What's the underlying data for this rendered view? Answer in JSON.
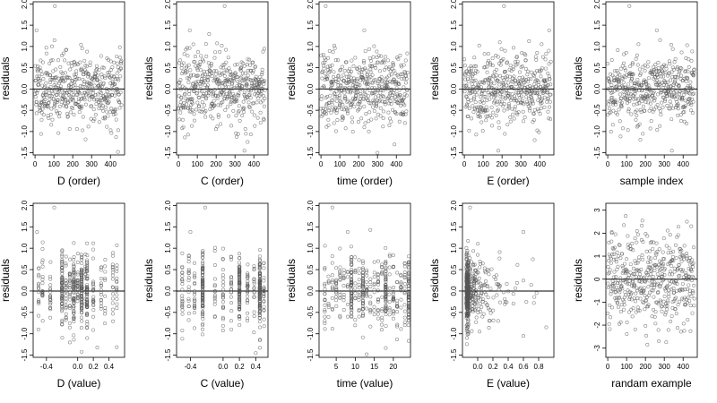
{
  "marker_color": "#555555",
  "chart_data": [
    {
      "type": "scatter",
      "xlabel": "D (order)",
      "ylabel": "residuals",
      "xlim": [
        -10,
        475
      ],
      "ylim": [
        -1.55,
        2.05
      ],
      "xticks": [
        0,
        100,
        200,
        300,
        400
      ],
      "xtick_labels": [
        "0",
        "100",
        "200",
        "300",
        "400"
      ],
      "yticks": [
        -1.5,
        -1,
        -0.5,
        0,
        0.5,
        1,
        1.5,
        2
      ],
      "ytick_labels": [
        "-1.5",
        "-1.0",
        "-0.5",
        "0.0",
        "0.5",
        "1.0",
        "1.5",
        "2.0"
      ],
      "reference_line_y": 0,
      "x_kind": "order",
      "n": 460,
      "spread": 0.42,
      "seed": 11,
      "points": [
        {
          "x": 105,
          "y": 1.95
        },
        {
          "x": 8,
          "y": 1.38
        },
        {
          "x": 440,
          "y": -1.48
        }
      ]
    },
    {
      "type": "scatter",
      "xlabel": "C (order)",
      "ylabel": "residuals",
      "xlim": [
        -10,
        475
      ],
      "ylim": [
        -1.55,
        2.05
      ],
      "xticks": [
        0,
        100,
        200,
        300,
        400
      ],
      "xtick_labels": [
        "0",
        "100",
        "200",
        "300",
        "400"
      ],
      "yticks": [
        -1.5,
        -1,
        -0.5,
        0,
        0.5,
        1,
        1.5,
        2
      ],
      "ytick_labels": [
        "-1.5",
        "-1.0",
        "-0.5",
        "0.0",
        "0.5",
        "1.0",
        "1.5",
        "2.0"
      ],
      "reference_line_y": 0,
      "x_kind": "order",
      "n": 460,
      "spread": 0.42,
      "seed": 23,
      "points": [
        {
          "x": 245,
          "y": 1.95
        },
        {
          "x": 60,
          "y": 1.38
        },
        {
          "x": 350,
          "y": -1.45
        }
      ]
    },
    {
      "type": "scatter",
      "xlabel": "time (order)",
      "ylabel": "residuals",
      "xlim": [
        -10,
        475
      ],
      "ylim": [
        -1.55,
        2.05
      ],
      "xticks": [
        0,
        100,
        200,
        300,
        400
      ],
      "xtick_labels": [
        "0",
        "100",
        "200",
        "300",
        "400"
      ],
      "yticks": [
        -1.5,
        -1,
        -0.5,
        0,
        0.5,
        1,
        1.5,
        2
      ],
      "ytick_labels": [
        "-1.5",
        "-1.0",
        "-0.5",
        "0.0",
        "0.5",
        "1.0",
        "1.5",
        "2.0"
      ],
      "reference_line_y": 0,
      "x_kind": "order",
      "n": 460,
      "spread": 0.42,
      "seed": 37,
      "points": [
        {
          "x": 25,
          "y": 1.95
        },
        {
          "x": 230,
          "y": 1.38
        },
        {
          "x": 300,
          "y": -1.5
        }
      ]
    },
    {
      "type": "scatter",
      "xlabel": "E (order)",
      "ylabel": "residuals",
      "xlim": [
        -10,
        475
      ],
      "ylim": [
        -1.55,
        2.05
      ],
      "xticks": [
        0,
        100,
        200,
        300,
        400
      ],
      "xtick_labels": [
        "0",
        "100",
        "200",
        "300",
        "400"
      ],
      "yticks": [
        -1.5,
        -1,
        -0.5,
        0,
        0.5,
        1,
        1.5,
        2
      ],
      "ytick_labels": [
        "-1.5",
        "-1.0",
        "-0.5",
        "0.0",
        "0.5",
        "1.0",
        "1.5",
        "2.0"
      ],
      "reference_line_y": 0,
      "x_kind": "order",
      "n": 460,
      "spread": 0.42,
      "seed": 41,
      "points": [
        {
          "x": 210,
          "y": 1.95
        },
        {
          "x": 450,
          "y": 1.38
        },
        {
          "x": 180,
          "y": -1.45
        }
      ]
    },
    {
      "type": "scatter",
      "xlabel": "sample index",
      "ylabel": "residuals",
      "xlim": [
        -10,
        475
      ],
      "ylim": [
        -1.55,
        2.05
      ],
      "xticks": [
        0,
        100,
        200,
        300,
        400
      ],
      "xtick_labels": [
        "0",
        "100",
        "200",
        "300",
        "400"
      ],
      "yticks": [
        -1.5,
        -1,
        -0.5,
        0,
        0.5,
        1,
        1.5,
        2
      ],
      "ytick_labels": [
        "-1.5",
        "-1.0",
        "-0.5",
        "0.0",
        "0.5",
        "1.0",
        "1.5",
        "2.0"
      ],
      "reference_line_y": 0,
      "x_kind": "order",
      "n": 460,
      "spread": 0.42,
      "seed": 53,
      "points": [
        {
          "x": 115,
          "y": 1.95
        },
        {
          "x": 260,
          "y": 1.38
        },
        {
          "x": 340,
          "y": -1.45
        }
      ]
    },
    {
      "type": "scatter",
      "xlabel": "D (value)",
      "ylabel": "residuals",
      "xlim": [
        -0.57,
        0.6
      ],
      "ylim": [
        -1.55,
        2.05
      ],
      "xticks": [
        -0.4,
        0,
        0.2,
        0.4
      ],
      "xtick_labels": [
        "-0.4",
        "0.0",
        "0.2",
        "0.4"
      ],
      "yticks": [
        -1.5,
        -1,
        -0.5,
        0,
        0.5,
        1,
        1.5,
        2
      ],
      "ytick_labels": [
        "-1.5",
        "-1.0",
        "-0.5",
        "0.0",
        "0.5",
        "1.0",
        "1.5",
        "2.0"
      ],
      "reference_line_y": 0,
      "x_kind": "discrete",
      "x_values": [
        -0.5,
        -0.45,
        -0.35,
        -0.2,
        -0.15,
        -0.1,
        -0.05,
        0,
        0.05,
        0.1,
        0.12,
        0.2,
        0.3,
        0.35,
        0.45,
        0.5
      ],
      "dense_values": [
        0.12,
        -0.05,
        0.05,
        -0.2
      ],
      "n": 460,
      "spread": 0.42,
      "seed": 67,
      "points": [
        {
          "x": -0.3,
          "y": 1.95
        },
        {
          "x": -0.52,
          "y": 1.38
        },
        {
          "x": 0.25,
          "y": -1.32
        }
      ]
    },
    {
      "type": "scatter",
      "xlabel": "C (value)",
      "ylabel": "residuals",
      "xlim": [
        -0.57,
        0.55
      ],
      "ylim": [
        -1.55,
        2.05
      ],
      "xticks": [
        -0.4,
        0,
        0.2,
        0.4
      ],
      "xtick_labels": [
        "-0.4",
        "0.0",
        "0.2",
        "0.4"
      ],
      "yticks": [
        -1.5,
        -1,
        -0.5,
        0,
        0.5,
        1,
        1.5,
        2
      ],
      "ytick_labels": [
        "-1.5",
        "-1.0",
        "-0.5",
        "0.0",
        "0.5",
        "1.0",
        "1.5",
        "2.0"
      ],
      "reference_line_y": 0,
      "x_kind": "discrete",
      "x_values": [
        -0.5,
        -0.42,
        -0.35,
        -0.25,
        -0.1,
        0,
        0.1,
        0.2,
        0.3,
        0.38,
        0.45,
        0.5
      ],
      "dense_values": [
        -0.25,
        0.2,
        0.45
      ],
      "n": 460,
      "spread": 0.42,
      "seed": 71,
      "points": [
        {
          "x": -0.22,
          "y": 1.95
        },
        {
          "x": -0.4,
          "y": 1.38
        },
        {
          "x": 0.4,
          "y": -1.45
        }
      ]
    },
    {
      "type": "scatter",
      "xlabel": "time (value)",
      "ylabel": "residuals",
      "xlim": [
        0.5,
        24.5
      ],
      "ylim": [
        -1.55,
        2.05
      ],
      "xticks": [
        5,
        10,
        15,
        20
      ],
      "xtick_labels": [
        "5",
        "10",
        "15",
        "20"
      ],
      "yticks": [
        -1.5,
        -1,
        -0.5,
        0,
        0.5,
        1,
        1.5,
        2
      ],
      "ytick_labels": [
        "-1.5",
        "-1.0",
        "-0.5",
        "0.0",
        "0.5",
        "1.0",
        "1.5",
        "2.0"
      ],
      "reference_line_y": 0,
      "x_kind": "discrete",
      "x_values": [
        2,
        3,
        4,
        5,
        6,
        7,
        8,
        9,
        10,
        11,
        12,
        13,
        14,
        15,
        16,
        17,
        18,
        19,
        20,
        21,
        22,
        23,
        24
      ],
      "dense_values": [
        12,
        18,
        24,
        9
      ],
      "n": 460,
      "spread": 0.42,
      "seed": 83,
      "points": [
        {
          "x": 4,
          "y": 1.95
        },
        {
          "x": 8,
          "y": 1.38
        },
        {
          "x": 13,
          "y": -1.48
        }
      ]
    },
    {
      "type": "scatter",
      "xlabel": "E (value)",
      "ylabel": "residuals",
      "xlim": [
        -0.2,
        1.0
      ],
      "ylim": [
        -1.55,
        2.05
      ],
      "xticks": [
        0,
        0.2,
        0.4,
        0.6,
        0.8
      ],
      "xtick_labels": [
        "0.0",
        "0.2",
        "0.4",
        "0.6",
        "0.8"
      ],
      "yticks": [
        -1.5,
        -1,
        -0.5,
        0,
        0.5,
        1,
        1.5,
        2
      ],
      "ytick_labels": [
        "-1.5",
        "-1.0",
        "-0.5",
        "0.0",
        "0.5",
        "1.0",
        "1.5",
        "2.0"
      ],
      "reference_line_y": 0,
      "x_kind": "skewed",
      "x_min": -0.15,
      "x_scale": 0.18,
      "n": 460,
      "spread": 0.42,
      "seed": 97,
      "points": [
        {
          "x": -0.1,
          "y": 1.95
        },
        {
          "x": 0.6,
          "y": 1.38
        },
        {
          "x": 0.6,
          "y": -1.05
        },
        {
          "x": 0.9,
          "y": -0.85
        }
      ]
    },
    {
      "type": "scatter",
      "xlabel": "randam example",
      "ylabel": "residuals",
      "xlim": [
        -10,
        475
      ],
      "ylim": [
        -3.4,
        3.3
      ],
      "xticks": [
        0,
        100,
        200,
        300,
        400
      ],
      "xtick_labels": [
        "0",
        "100",
        "200",
        "300",
        "400"
      ],
      "yticks": [
        -3,
        -2,
        -1,
        0,
        1,
        2,
        3
      ],
      "ytick_labels": [
        "-3",
        "-2",
        "-1",
        "0",
        "1",
        "2",
        "3"
      ],
      "reference_line_y": 0,
      "x_kind": "order",
      "n": 460,
      "spread": 1.0,
      "seed": 101,
      "points": [
        {
          "x": 95,
          "y": 2.75
        },
        {
          "x": 420,
          "y": 2.5
        },
        {
          "x": 210,
          "y": -2.85
        }
      ]
    }
  ]
}
